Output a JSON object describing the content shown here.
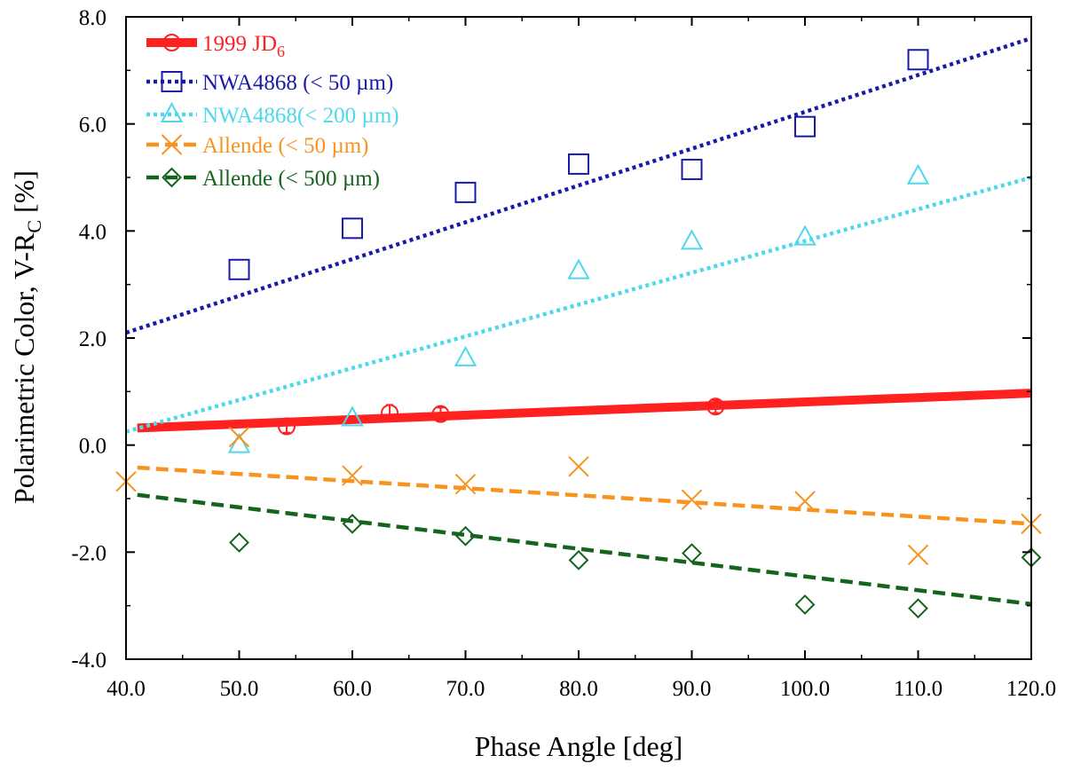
{
  "chart_data": {
    "type": "scatter",
    "xlabel": "Phase Angle [deg]",
    "ylabel_main": "Polarimetric Color, V-R",
    "ylabel_sub": "C",
    "ylabel_tail": " [%]",
    "xlim": [
      40,
      120
    ],
    "ylim": [
      -4,
      8
    ],
    "x_ticks": [
      40,
      50,
      60,
      70,
      80,
      90,
      100,
      110,
      120
    ],
    "x_tick_labels": [
      "40.0",
      "50.0",
      "60.0",
      "70.0",
      "80.0",
      "90.0",
      "100.0",
      "110.0",
      "120.0"
    ],
    "y_ticks": [
      -4,
      -2,
      0,
      2,
      4,
      6,
      8
    ],
    "y_tick_labels": [
      "-4.0",
      "-2.0",
      "0.0",
      "2.0",
      "4.0",
      "6.0",
      "8.0"
    ],
    "grid": false,
    "legend_position": "top-left",
    "series": [
      {
        "name": "1999 JD",
        "name_sub": "6",
        "color": "#ff2020",
        "marker": "circle",
        "line_style": "solid-thick",
        "x": [
          54.2,
          63.3,
          67.8,
          92.1
        ],
        "y": [
          0.35,
          0.6,
          0.58,
          0.72
        ],
        "err": [
          0.12,
          0.15,
          0.12,
          0.12
        ],
        "fit": [
          [
            41,
            0.32
          ],
          [
            120,
            0.97
          ]
        ]
      },
      {
        "name": "NWA4868 (< 50 µm)",
        "color": "#1a1aaa",
        "marker": "square",
        "line_style": "dotted",
        "x": [
          50,
          60,
          70,
          80,
          90,
          100,
          110
        ],
        "y": [
          3.28,
          4.05,
          4.72,
          5.25,
          5.15,
          5.95,
          7.2
        ],
        "fit": [
          [
            40,
            2.1
          ],
          [
            120,
            7.6
          ]
        ]
      },
      {
        "name": "NWA4868(< 200 µm)",
        "color": "#4fd8ec",
        "marker": "triangle",
        "line_style": "dotted",
        "x": [
          50,
          60,
          70,
          80,
          90,
          100,
          110
        ],
        "y": [
          0.0,
          0.5,
          1.62,
          3.25,
          3.8,
          3.88,
          5.02
        ],
        "fit": [
          [
            40,
            0.25
          ],
          [
            120,
            5.0
          ]
        ]
      },
      {
        "name": "Allende (< 50 µm)",
        "color": "#f7931e",
        "marker": "x",
        "line_style": "dashed",
        "x": [
          40,
          50,
          60,
          70,
          80,
          90,
          100,
          110,
          120
        ],
        "y": [
          -0.68,
          0.15,
          -0.57,
          -0.73,
          -0.4,
          -1.02,
          -1.05,
          -2.05,
          -1.47
        ],
        "fit": [
          [
            41,
            -0.42
          ],
          [
            120,
            -1.47
          ]
        ]
      },
      {
        "name": "Allende (< 500 µm)",
        "color": "#14641e",
        "marker": "diamond",
        "line_style": "dashed",
        "x": [
          50,
          60,
          70,
          80,
          90,
          100,
          110,
          120
        ],
        "y": [
          -1.82,
          -1.47,
          -1.7,
          -2.15,
          -2.02,
          -2.98,
          -3.05,
          -2.1
        ],
        "fit": [
          [
            41,
            -0.93
          ],
          [
            120,
            -2.97
          ]
        ]
      }
    ]
  }
}
